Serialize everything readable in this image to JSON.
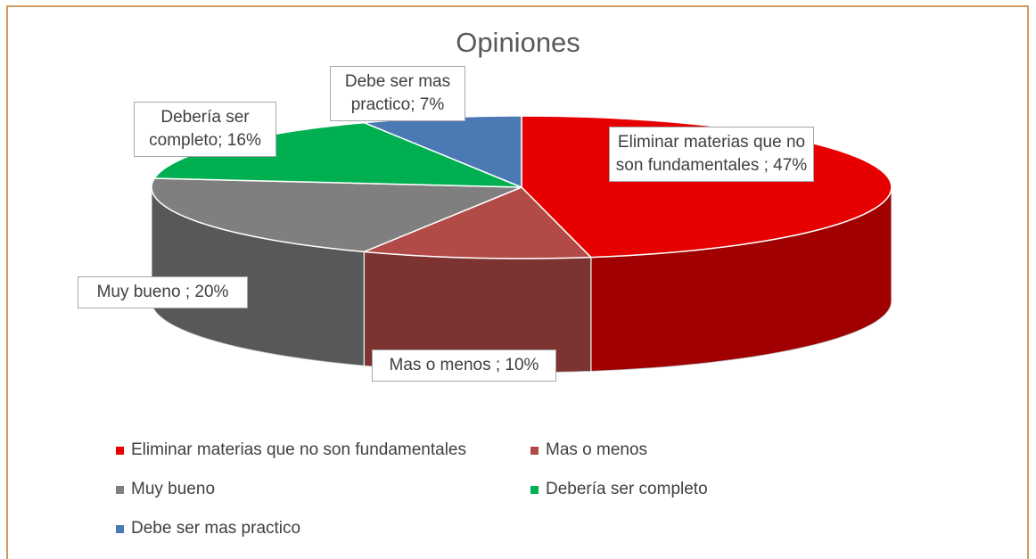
{
  "chart_data": {
    "type": "pie3d",
    "title": "Opiniones",
    "categories": [
      "Eliminar materias que no son fundamentales",
      "Mas o menos",
      "Muy bueno",
      "Debería ser completo",
      "Debe ser mas practico"
    ],
    "values": [
      47,
      10,
      20,
      16,
      7
    ],
    "value_labels": [
      "Eliminar materias que no son fundamentales ; 47%",
      "Mas o menos ; 10%",
      "Muy bueno ; 20%",
      "Debería ser completo; 16%",
      "Debe ser mas practico; 7%"
    ],
    "colors": [
      "#e60000",
      "#b24a47",
      "#7f7f7f",
      "#00b050",
      "#4a79b4"
    ],
    "legend": "bottom"
  }
}
